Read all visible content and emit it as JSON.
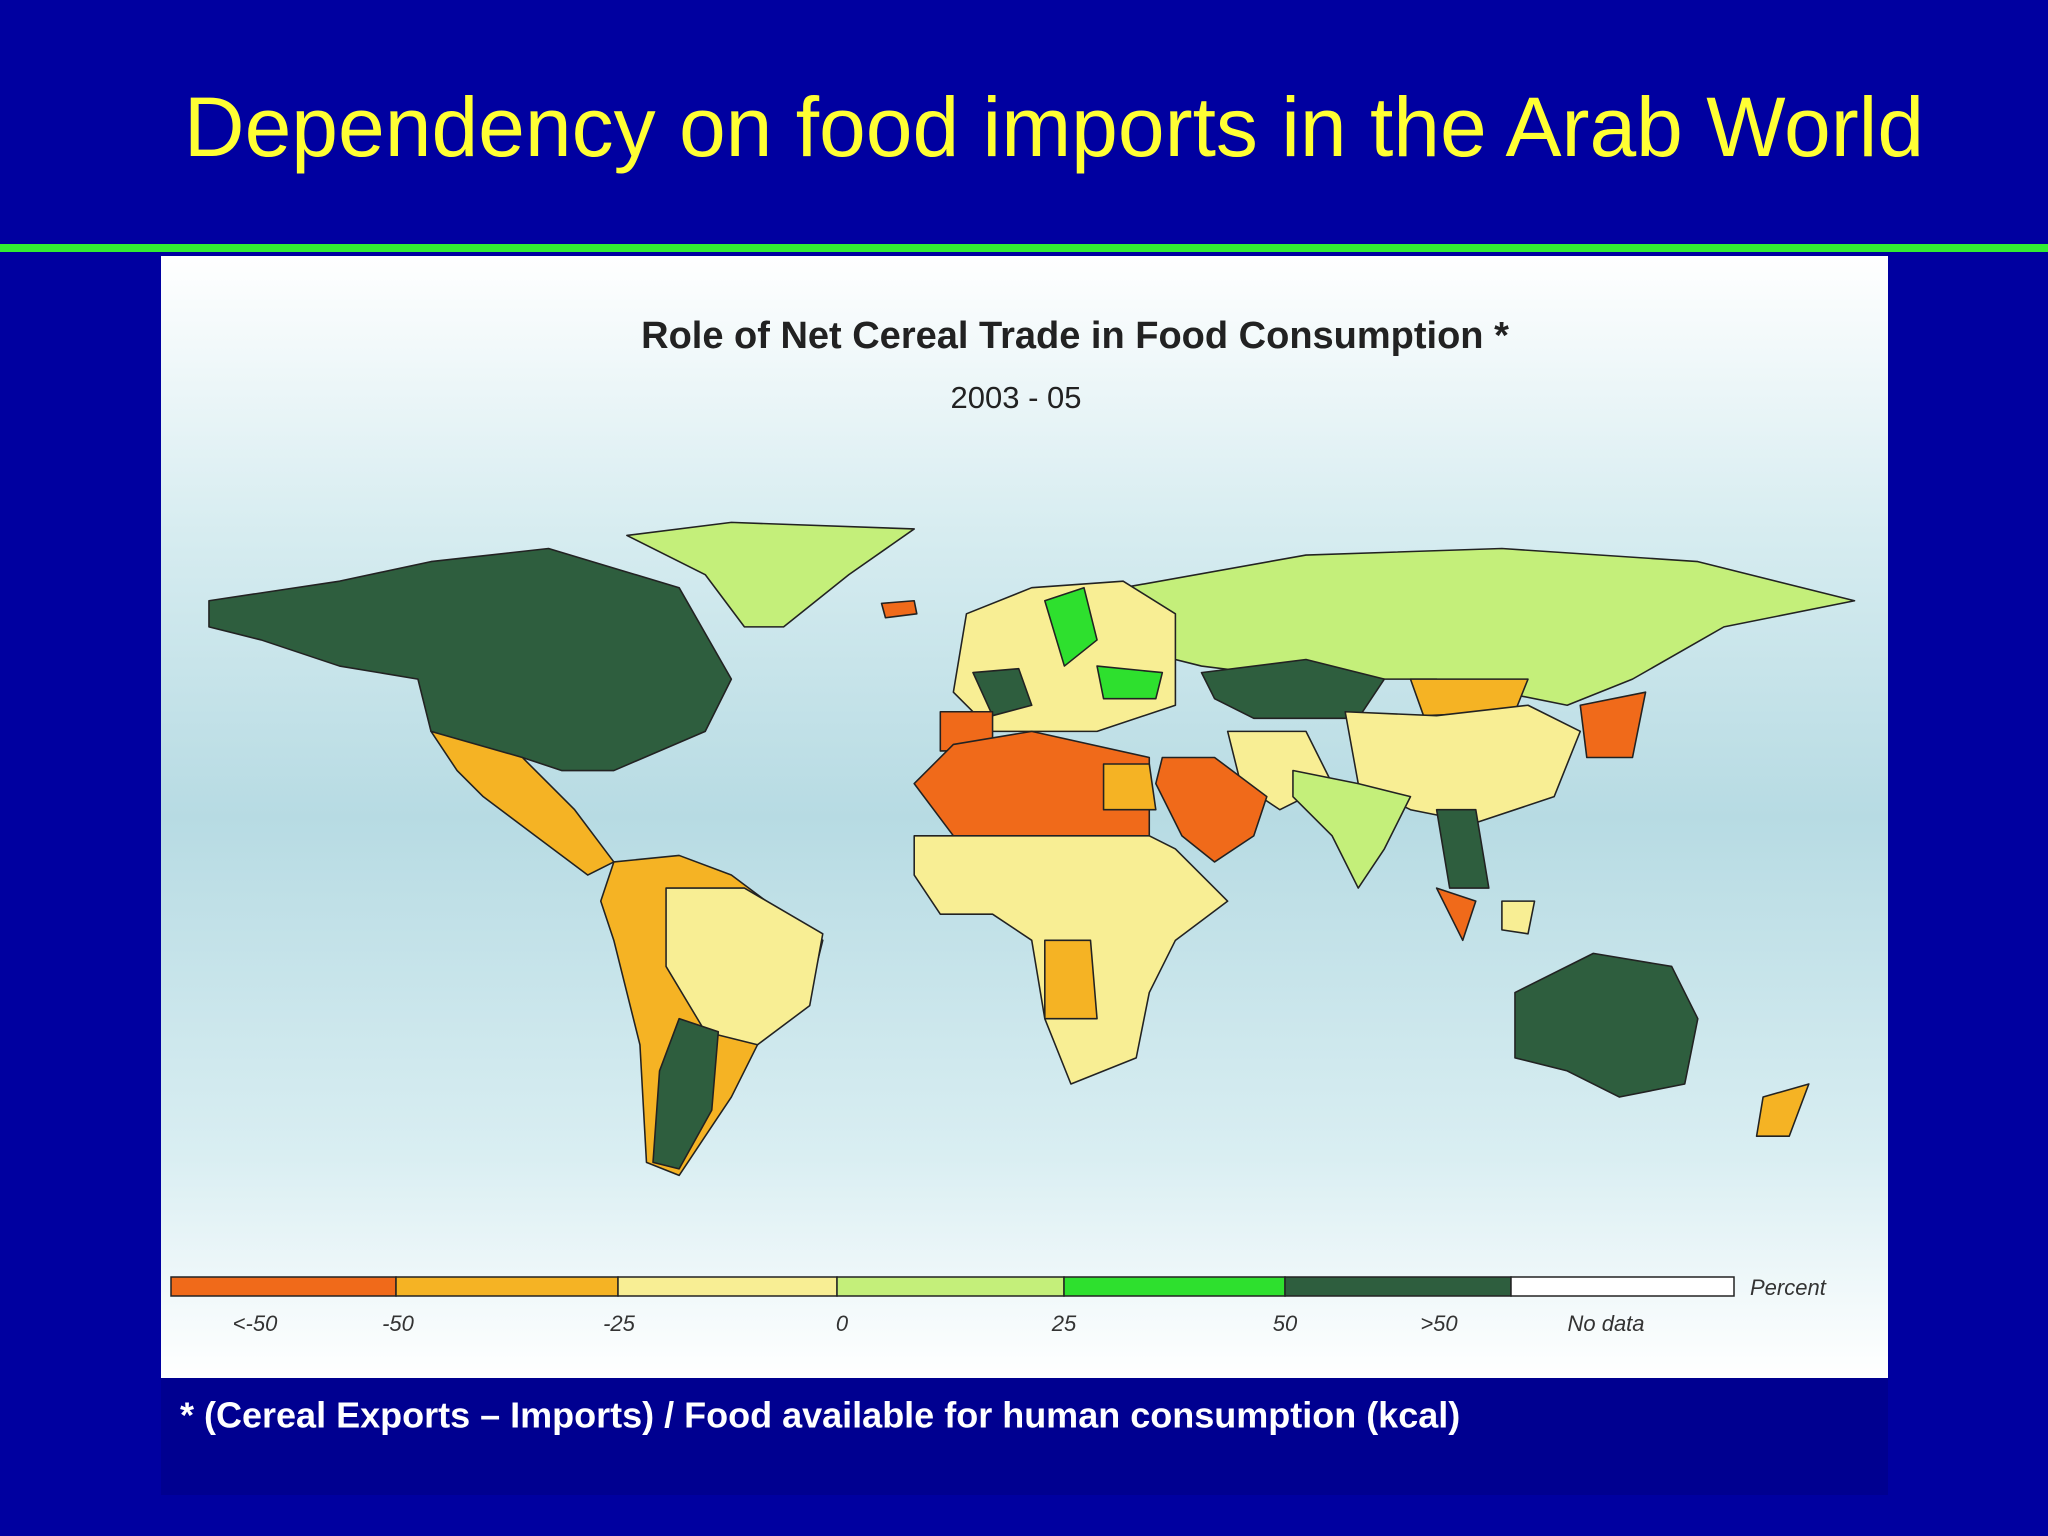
{
  "header": {
    "title": "Dependency on food imports in the Arab World"
  },
  "map": {
    "title": "Role of Net Cereal Trade in Food Consumption *",
    "subtitle": "2003 - 05"
  },
  "legend": {
    "unit": "Percent",
    "labels": [
      "<-50",
      "-50",
      "-25",
      "0",
      "25",
      "50",
      ">50",
      "No data"
    ],
    "colors": [
      "#f06a1a",
      "#f5b324",
      "#f8ee94",
      "#c4ef7a",
      "#2ee02e",
      "#2e5e3e",
      "#ffffff"
    ]
  },
  "footnote": "* (Cereal Exports – Imports) / Food available for human consumption (kcal)"
}
